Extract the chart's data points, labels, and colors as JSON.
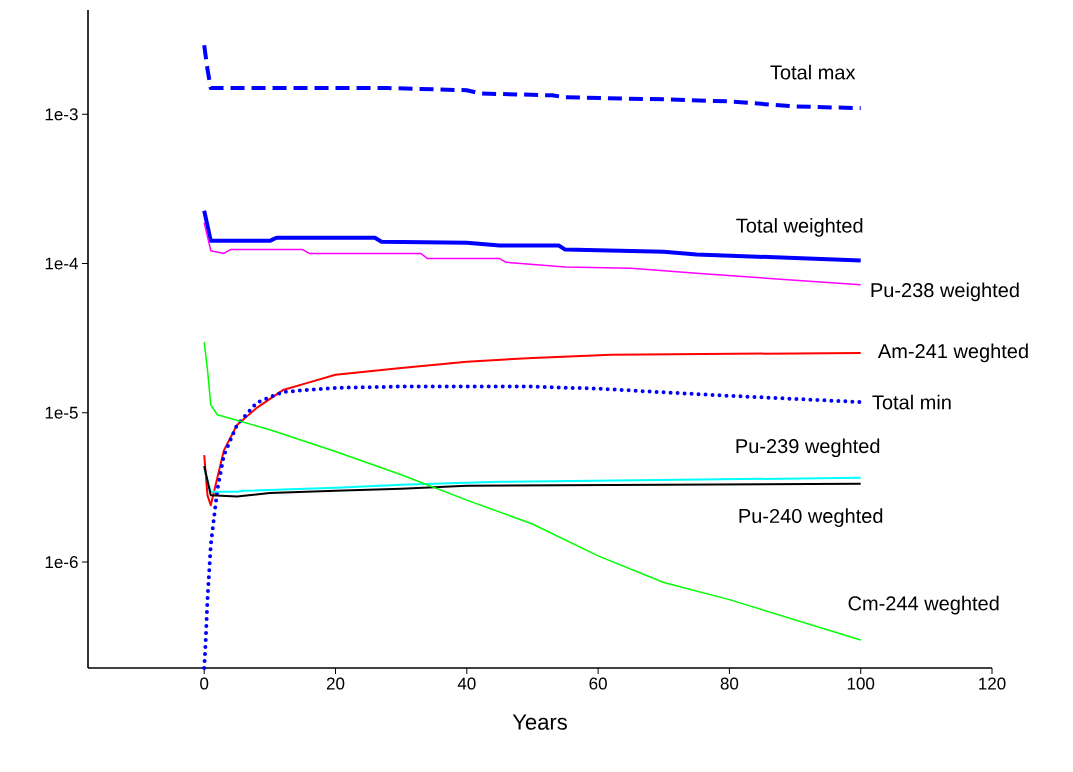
{
  "chart_data": {
    "type": "line",
    "xlabel": "Years",
    "log": "y",
    "grid": false,
    "legend": false,
    "marker": "none",
    "xlim": [
      -17.7,
      120
    ],
    "ylim": [
      1.95e-07,
      0.005
    ],
    "xticks": [
      0,
      20,
      40,
      60,
      80,
      100,
      120
    ],
    "yticks": [
      {
        "value": 0.001,
        "label": "1e-3"
      },
      {
        "value": 0.0001,
        "label": "1e-4"
      },
      {
        "value": 1e-05,
        "label": "1e-5"
      },
      {
        "value": 1e-06,
        "label": "1e-6"
      }
    ],
    "series": [
      {
        "name": "Total max",
        "color": "#0000ff",
        "line_style": "dashed",
        "x": [
          0,
          0.5,
          1,
          28,
          40,
          42,
          53,
          55,
          70,
          80,
          90,
          100
        ],
        "values": [
          0.0029,
          0.002,
          0.0015,
          0.0015,
          0.00145,
          0.00138,
          0.00134,
          0.0013,
          0.00126,
          0.00122,
          0.00113,
          0.0011
        ]
      },
      {
        "name": "Total weighted",
        "color": "#0000ff",
        "line_style": "solid",
        "x": [
          0,
          1,
          10,
          11,
          26,
          27,
          40,
          45,
          54,
          55,
          70,
          75,
          100
        ],
        "values": [
          0.000226,
          0.000142,
          0.000142,
          0.000149,
          0.000149,
          0.00014,
          0.000138,
          0.000132,
          0.000132,
          0.000124,
          0.00012,
          0.000115,
          0.000105
        ]
      },
      {
        "name": "Pu-238 weighted",
        "color": "#ff00ff",
        "line_style": "solid",
        "x": [
          0,
          1,
          3,
          4,
          15,
          16,
          33,
          34,
          45,
          46,
          55,
          65,
          75,
          100
        ],
        "values": [
          0.000188,
          0.000122,
          0.000117,
          0.000124,
          0.000124,
          0.000117,
          0.000117,
          0.000108,
          0.000108,
          0.000102,
          9.5e-05,
          9.3e-05,
          8.6e-05,
          7.2e-05
        ]
      },
      {
        "name": "Am-241 weghted",
        "color": "#ff0000",
        "line_style": "solid",
        "x": [
          0,
          0.5,
          1,
          3,
          5,
          8,
          12,
          16,
          20,
          30,
          40,
          50,
          62,
          100
        ],
        "values": [
          5.2e-06,
          2.8e-06,
          2.4e-06,
          5.6e-06,
          8.3e-06,
          1.08e-05,
          1.42e-05,
          1.6e-05,
          1.8e-05,
          2e-05,
          2.2e-05,
          2.33e-05,
          2.45e-05,
          2.52e-05
        ]
      },
      {
        "name": "Total min",
        "color": "#0000ff",
        "line_style": "dotted",
        "x": [
          0,
          0.2,
          0.5,
          1,
          2,
          3,
          5,
          8,
          12,
          20,
          30,
          50,
          60,
          80,
          100
        ],
        "values": [
          1.95e-07,
          2.8e-07,
          5.6e-07,
          1.3e-06,
          3.05e-06,
          5.2e-06,
          8.3e-06,
          1.17e-05,
          1.38e-05,
          1.47e-05,
          1.5e-05,
          1.5e-05,
          1.45e-05,
          1.3e-05,
          1.18e-05
        ]
      },
      {
        "name": "Pu-239 weghted",
        "color": "#00ffff",
        "line_style": "solid",
        "x": [
          0,
          1,
          5,
          6,
          20,
          30,
          45,
          100
        ],
        "values": [
          4.2e-06,
          2.96e-06,
          2.96e-06,
          3e-06,
          3.15e-06,
          3.3e-06,
          3.45e-06,
          3.67e-06
        ]
      },
      {
        "name": "Pu-240 weghted",
        "color": "#000000",
        "line_style": "solid",
        "x": [
          0,
          1,
          5,
          10,
          20,
          30,
          40,
          70,
          100
        ],
        "values": [
          4.4e-06,
          2.8e-06,
          2.75e-06,
          2.9e-06,
          3e-06,
          3.1e-06,
          3.25e-06,
          3.3e-06,
          3.35e-06
        ]
      },
      {
        "name": "Cm-244 weghted",
        "color": "#00ff00",
        "line_style": "solid",
        "x": [
          0,
          0.5,
          1,
          2,
          10,
          20,
          30,
          40,
          50,
          60,
          70,
          80,
          100
        ],
        "values": [
          2.98e-05,
          1.94e-05,
          1.13e-05,
          9.7e-06,
          7.7e-06,
          5.5e-06,
          3.85e-06,
          2.6e-06,
          1.8e-06,
          1.1e-06,
          7.3e-07,
          5.6e-07,
          3e-07
        ]
      }
    ]
  }
}
